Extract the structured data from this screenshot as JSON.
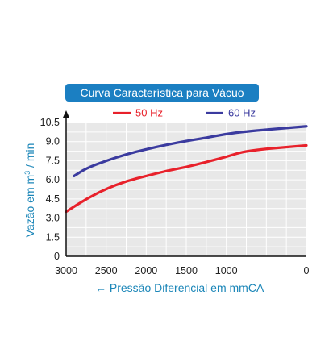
{
  "chart_data": {
    "type": "line",
    "title": "Curva Característica para Vácuo",
    "xlabel": "Pressão Diferencial em mmCA",
    "ylabel_main": "Vazão em m",
    "ylabel_sup": "3",
    "ylabel_tail": " / min",
    "xlim": [
      3000,
      0
    ],
    "ylim": [
      0,
      10.5
    ],
    "x_ticks": [
      "3000",
      "2500",
      "2000",
      "1500",
      "1000",
      "0"
    ],
    "x_tick_values": [
      3000,
      2500,
      2000,
      1500,
      1000,
      0
    ],
    "y_ticks": [
      "0",
      "1.5",
      "3.0",
      "4.5",
      "6.0",
      "7.5",
      "9.0",
      "10.5"
    ],
    "y_tick_values": [
      0,
      1.5,
      3.0,
      4.5,
      6.0,
      7.5,
      9.0,
      10.5
    ],
    "grid": true,
    "legend_position": "top-center",
    "series": [
      {
        "name": "50 Hz",
        "color": "#e8212b",
        "x": [
          3000,
          2750,
          2500,
          2250,
          2000,
          1750,
          1500,
          1250,
          1000,
          750,
          0
        ],
        "y": [
          3.5,
          4.5,
          5.3,
          5.9,
          6.3,
          6.7,
          7.0,
          7.4,
          7.8,
          8.3,
          8.7
        ]
      },
      {
        "name": "60 Hz",
        "color": "#3b3b9f",
        "x": [
          2900,
          2750,
          2500,
          2250,
          2000,
          1750,
          1500,
          1250,
          1000,
          750,
          0
        ],
        "y": [
          6.3,
          6.9,
          7.5,
          8.0,
          8.4,
          8.75,
          9.05,
          9.3,
          9.6,
          9.8,
          10.2
        ]
      }
    ],
    "x_arrow": "←"
  }
}
